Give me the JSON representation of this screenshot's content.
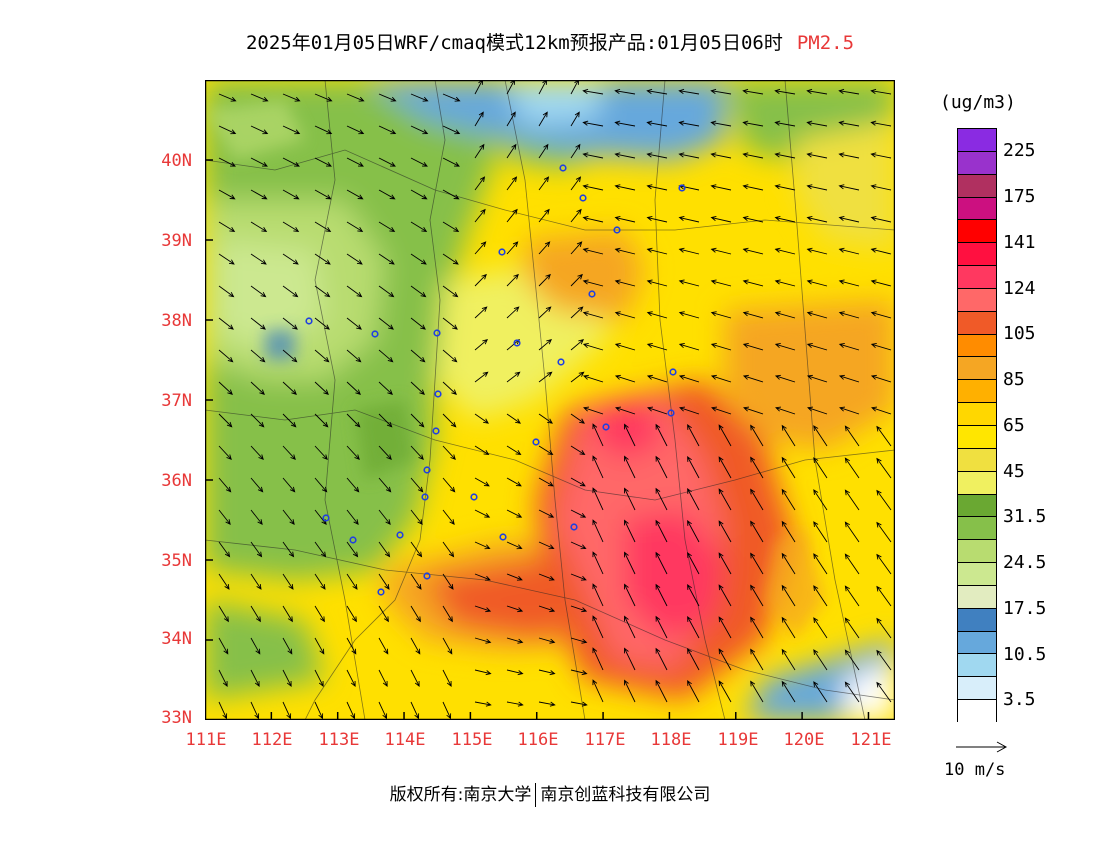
{
  "title": {
    "text": "2025年01月05日WRF/cmaq模式12km预报产品:01月05日06时",
    "pollutant": "PM2.5",
    "pollutant_color": "#e83838"
  },
  "map": {
    "lat_labels": [
      "40N",
      "39N",
      "38N",
      "37N",
      "36N",
      "35N",
      "34N",
      "33N"
    ],
    "lon_labels": [
      "111E",
      "112E",
      "113E",
      "114E",
      "115E",
      "116E",
      "117E",
      "118E",
      "119E",
      "120E",
      "121E"
    ],
    "label_color": "#e83838",
    "lat_range": [
      33,
      41
    ],
    "lon_range": [
      111,
      121.4
    ]
  },
  "legend": {
    "unit": "(ug/m3)",
    "colors": [
      "#8a2be2",
      "#9932cc",
      "#b03060",
      "#cc1080",
      "#ff0000",
      "#ff1040",
      "#ff3860",
      "#ff6868",
      "#f05a28",
      "#ff8c00",
      "#f5a623",
      "#ffb000",
      "#ffd700",
      "#ffe600",
      "#f0e040",
      "#f0f060",
      "#6aa832",
      "#86c04a",
      "#b8dc70",
      "#cce890",
      "#e2ecc0",
      "#4080c0",
      "#66a8dc",
      "#a0d8f0",
      "#d8eefa",
      "#ffffff"
    ],
    "ticks": [
      "225",
      "175",
      "141",
      "124",
      "105",
      "85",
      "65",
      "45",
      "31.5",
      "24.5",
      "17.5",
      "10.5",
      "3.5"
    ]
  },
  "vector": {
    "label": "10 m/s"
  },
  "footer": {
    "left": "版权所有:南京大学",
    "right": "南京创蓝科技有限公司"
  }
}
